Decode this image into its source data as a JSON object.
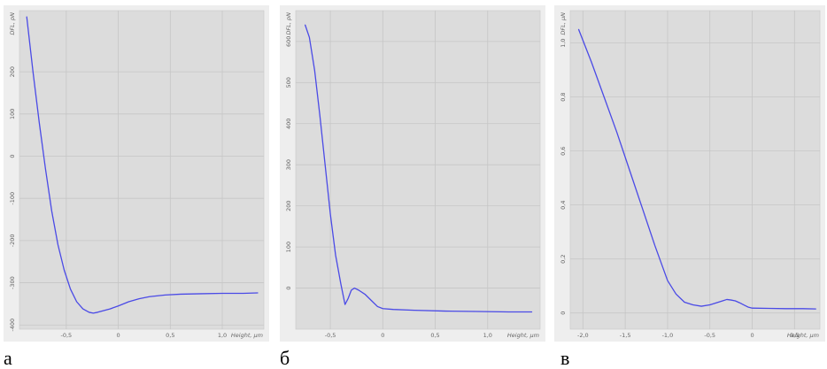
{
  "chart_data": [
    {
      "type": "line",
      "panel_label": "а",
      "xlabel": "Height, µm",
      "ylabel": "DFL, pN",
      "xlim": [
        -0.95,
        1.4
      ],
      "ylim": [
        -410,
        345
      ],
      "x_ticks": [
        -0.5,
        0,
        0.5,
        1.0
      ],
      "x_tick_labels": [
        "-0,5",
        "0",
        "0,5",
        "1,0"
      ],
      "y_ticks": [
        -400,
        -300,
        -200,
        -100,
        0,
        100,
        200
      ],
      "y_tick_labels": [
        "-400",
        "-300",
        "-200",
        "-100",
        "0",
        "100",
        "200"
      ],
      "grid": true,
      "line_color": "#4a4ae6",
      "series": [
        {
          "x": [
            -0.88,
            -0.82,
            -0.76,
            -0.7,
            -0.64,
            -0.58,
            -0.52,
            -0.46,
            -0.4,
            -0.34,
            -0.28,
            -0.24,
            -0.2,
            -0.14,
            -0.08,
            0.0,
            0.1,
            0.2,
            0.3,
            0.45,
            0.6,
            0.8,
            1.0,
            1.2,
            1.34
          ],
          "y": [
            330,
            200,
            80,
            -30,
            -130,
            -210,
            -270,
            -315,
            -345,
            -362,
            -370,
            -372,
            -370,
            -366,
            -362,
            -355,
            -345,
            -338,
            -333,
            -329,
            -327,
            -326,
            -325,
            -325,
            -324
          ]
        }
      ]
    },
    {
      "type": "line",
      "panel_label": "б",
      "xlabel": "Height, µm",
      "ylabel": "DFL, pN",
      "xlim": [
        -0.83,
        1.5
      ],
      "ylim": [
        -100,
        675
      ],
      "x_ticks": [
        -0.5,
        0,
        0.5,
        1.0
      ],
      "x_tick_labels": [
        "-0,5",
        "0",
        "0,5",
        "1,0"
      ],
      "y_ticks": [
        0,
        100,
        200,
        300,
        400,
        500,
        600
      ],
      "y_tick_labels": [
        "0",
        "100",
        "200",
        "300",
        "400",
        "500",
        "600"
      ],
      "grid": true,
      "line_color": "#4a4ae6",
      "series": [
        {
          "x": [
            -0.74,
            -0.7,
            -0.65,
            -0.6,
            -0.55,
            -0.5,
            -0.45,
            -0.4,
            -0.36,
            -0.33,
            -0.3,
            -0.27,
            -0.23,
            -0.17,
            -0.11,
            -0.05,
            0.0,
            0.1,
            0.3,
            0.6,
            0.9,
            1.2,
            1.42
          ],
          "y": [
            640,
            610,
            530,
            420,
            300,
            180,
            80,
            10,
            -40,
            -25,
            -5,
            0,
            -5,
            -15,
            -30,
            -45,
            -50,
            -52,
            -54,
            -56,
            -57,
            -58,
            -58
          ]
        }
      ]
    },
    {
      "type": "line",
      "panel_label": "в",
      "xlabel": "Height, µm",
      "ylabel": "DFL, µN",
      "xlim": [
        -2.15,
        0.8
      ],
      "ylim": [
        -0.06,
        1.12
      ],
      "x_ticks": [
        -2.0,
        -1.5,
        -1.0,
        -0.5,
        0,
        0.5
      ],
      "x_tick_labels": [
        "-2,0",
        "-1,5",
        "-1,0",
        "-0,5",
        "0",
        "0,5"
      ],
      "y_ticks": [
        0,
        0.2,
        0.4,
        0.6,
        0.8,
        1.0
      ],
      "y_tick_labels": [
        "0",
        "0,2",
        "0,4",
        "0,6",
        "0,8",
        "1,0"
      ],
      "grid": true,
      "line_color": "#4a4ae6",
      "series": [
        {
          "x": [
            -2.05,
            -1.9,
            -1.75,
            -1.6,
            -1.45,
            -1.3,
            -1.15,
            -1.0,
            -0.9,
            -0.8,
            -0.7,
            -0.6,
            -0.5,
            -0.45,
            -0.4,
            -0.35,
            -0.3,
            -0.25,
            -0.2,
            -0.15,
            -0.1,
            -0.05,
            0.0,
            0.2,
            0.4,
            0.6,
            0.75
          ],
          "y": [
            1.05,
            0.93,
            0.8,
            0.67,
            0.53,
            0.39,
            0.25,
            0.12,
            0.07,
            0.04,
            0.03,
            0.025,
            0.03,
            0.035,
            0.04,
            0.045,
            0.05,
            0.048,
            0.045,
            0.038,
            0.03,
            0.022,
            0.018,
            0.017,
            0.016,
            0.016,
            0.015
          ]
        }
      ]
    }
  ]
}
